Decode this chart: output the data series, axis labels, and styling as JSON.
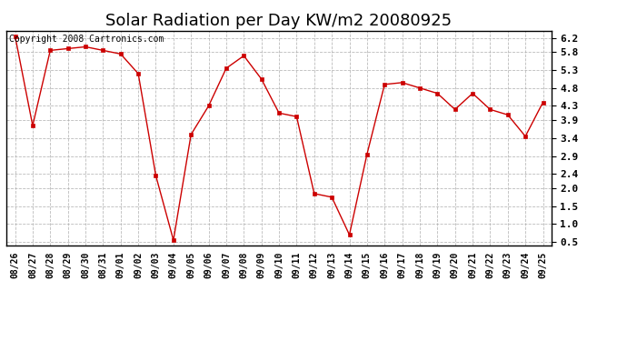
{
  "title": "Solar Radiation per Day KW/m2 20080925",
  "copyright_text": "Copyright 2008 Cartronics.com",
  "dates": [
    "08/26",
    "08/27",
    "08/28",
    "08/29",
    "08/30",
    "08/31",
    "09/01",
    "09/02",
    "09/03",
    "09/04",
    "09/05",
    "09/06",
    "09/07",
    "09/08",
    "09/09",
    "09/10",
    "09/11",
    "09/12",
    "09/13",
    "09/14",
    "09/15",
    "09/16",
    "09/17",
    "09/18",
    "09/19",
    "09/20",
    "09/21",
    "09/22",
    "09/23",
    "09/24",
    "09/25"
  ],
  "values": [
    6.25,
    3.75,
    5.85,
    5.9,
    5.95,
    5.85,
    5.75,
    5.2,
    2.35,
    0.55,
    3.5,
    4.3,
    5.35,
    5.7,
    5.05,
    4.1,
    4.0,
    1.85,
    1.75,
    0.7,
    2.95,
    4.9,
    4.95,
    4.8,
    4.65,
    4.2,
    4.65,
    4.2,
    4.05,
    3.45,
    4.4
  ],
  "line_color": "#cc0000",
  "marker": "s",
  "marker_size": 3,
  "marker_color": "#cc0000",
  "bg_color": "#ffffff",
  "grid_color": "#aaaaaa",
  "ylim": [
    0.4,
    6.4
  ],
  "yticks": [
    0.5,
    1.0,
    1.5,
    2.0,
    2.4,
    2.9,
    3.4,
    3.9,
    4.3,
    4.8,
    5.3,
    5.8,
    6.2
  ],
  "title_fontsize": 13,
  "copyright_fontsize": 7,
  "tick_fontsize": 8,
  "xtick_fontsize": 7
}
